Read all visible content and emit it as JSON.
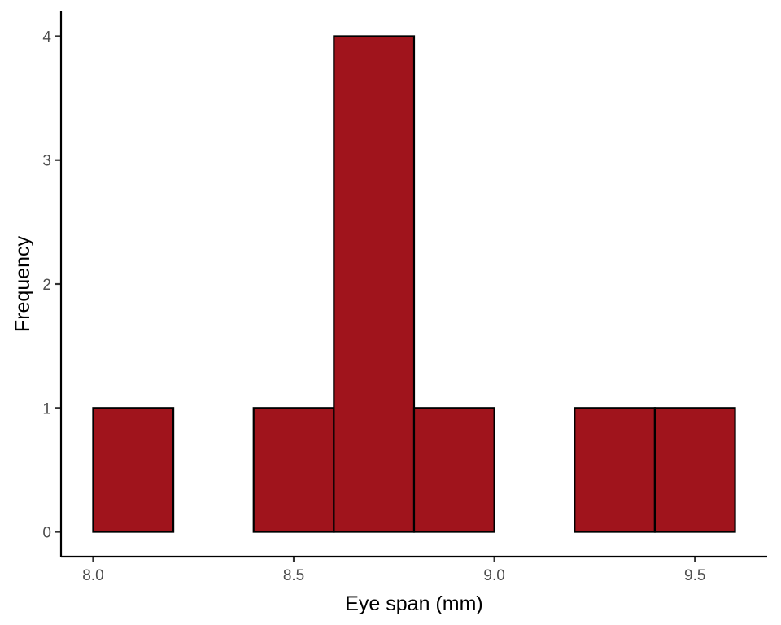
{
  "chart_data": {
    "type": "histogram",
    "xlabel": "Eye span (mm)",
    "ylabel": "Frequency",
    "bin_width": 0.2,
    "bins": [
      {
        "x0": 8.0,
        "x1": 8.2,
        "count": 1
      },
      {
        "x0": 8.2,
        "x1": 8.4,
        "count": 0
      },
      {
        "x0": 8.4,
        "x1": 8.6,
        "count": 1
      },
      {
        "x0": 8.6,
        "x1": 8.8,
        "count": 4
      },
      {
        "x0": 8.8,
        "x1": 9.0,
        "count": 1
      },
      {
        "x0": 9.0,
        "x1": 9.2,
        "count": 0
      },
      {
        "x0": 9.2,
        "x1": 9.4,
        "count": 1
      },
      {
        "x0": 9.4,
        "x1": 9.6,
        "count": 1
      }
    ],
    "x_ticks": [
      "8.0",
      "8.5",
      "9.0",
      "9.5"
    ],
    "y_ticks": [
      "0",
      "1",
      "2",
      "3",
      "4"
    ],
    "xlim": [
      7.92,
      9.68
    ],
    "ylim": [
      -0.2,
      4.2
    ],
    "bar_fill": "#a0141c",
    "grid": false,
    "legend": "none"
  }
}
